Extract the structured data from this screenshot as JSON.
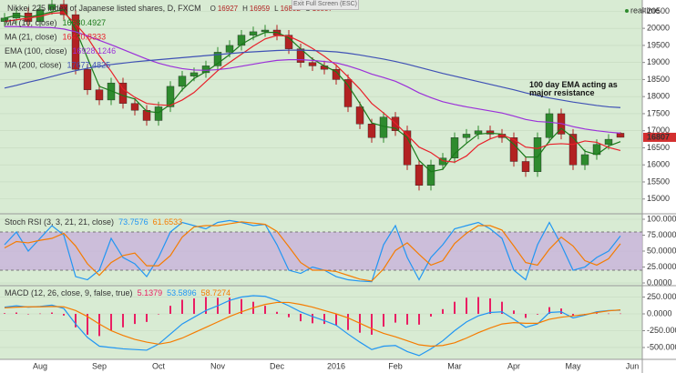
{
  "chart_data": [
    {
      "type": "candlestick",
      "title": "Nikkei 225 index of Japanese listed shares, D, FXCM",
      "ohlc_labels": [
        "O",
        "H",
        "L",
        "C"
      ],
      "exit_label": "Exit Full Screen (ESC)",
      "status": "realtime",
      "annotation": "100 day EMA acting as major resistance",
      "up_color": "#2e8b2e",
      "down_color": "#b22222",
      "categories": [
        null,
        null,
        null,
        "Aug",
        null,
        null,
        null,
        null,
        "Sep",
        null,
        null,
        null,
        null,
        "Oct",
        null,
        null,
        null,
        null,
        "Nov",
        null,
        null,
        null,
        null,
        "Dec",
        null,
        null,
        null,
        null,
        "2016",
        null,
        null,
        null,
        null,
        "Feb",
        null,
        null,
        null,
        null,
        "Mar",
        null,
        null,
        null,
        null,
        "Apr",
        null,
        null,
        null,
        null,
        "May",
        null,
        null,
        null,
        null,
        "Jun"
      ],
      "open": [
        20200,
        20300,
        20450,
        20200,
        20550,
        20700,
        20400,
        18800,
        18200,
        17900,
        18400,
        17800,
        17600,
        17300,
        17700,
        18300,
        18600,
        18700,
        18900,
        19300,
        19500,
        19800,
        19900,
        19950,
        19800,
        19400,
        19000,
        18900,
        18800,
        18500,
        17700,
        17200,
        16800,
        17400,
        17000,
        16000,
        15400,
        16000,
        16200,
        16800,
        16900,
        17000,
        16900,
        16800,
        16100,
        15800,
        16800,
        17500,
        16900,
        16000,
        16300,
        16600,
        16927,
        null
      ],
      "high": [
        20450,
        20600,
        20600,
        20700,
        20850,
        20850,
        20550,
        18950,
        18350,
        18550,
        18550,
        17950,
        17750,
        17850,
        18450,
        18750,
        18850,
        19050,
        19450,
        19650,
        19950,
        20050,
        20100,
        20100,
        19950,
        19550,
        19150,
        19050,
        18950,
        18650,
        17850,
        17350,
        17550,
        17550,
        17150,
        16150,
        16150,
        16350,
        16950,
        17050,
        17150,
        17150,
        17050,
        16950,
        16250,
        16950,
        17650,
        17650,
        17050,
        16450,
        16750,
        16900,
        16959,
        null
      ],
      "low": [
        20050,
        20150,
        20050,
        20050,
        20400,
        20250,
        18650,
        18050,
        17750,
        17750,
        17650,
        17450,
        17150,
        17150,
        17550,
        18150,
        18450,
        18550,
        18750,
        19150,
        19350,
        19650,
        19750,
        19650,
        19250,
        18850,
        18750,
        18650,
        18350,
        17550,
        17050,
        16650,
        16650,
        16850,
        15850,
        15250,
        15250,
        15850,
        16050,
        16650,
        16750,
        16750,
        16650,
        15950,
        15650,
        15650,
        16650,
        16750,
        15850,
        15850,
        16150,
        16450,
        16802,
        null
      ],
      "close": [
        20300,
        20450,
        20200,
        20550,
        20700,
        20400,
        18800,
        18200,
        17900,
        18400,
        17800,
        17600,
        17300,
        17700,
        18300,
        18600,
        18700,
        18900,
        19300,
        19500,
        19800,
        19900,
        19950,
        19800,
        19400,
        19000,
        18900,
        18800,
        18500,
        17700,
        17200,
        16800,
        17400,
        17000,
        16000,
        15400,
        16000,
        16200,
        16800,
        16900,
        17000,
        16900,
        16800,
        16100,
        15800,
        16800,
        17500,
        16900,
        16000,
        16300,
        16600,
        16750,
        16807,
        null
      ],
      "series": [
        {
          "name": "MA (10, close)",
          "color": "#1b7a1b",
          "values": [
            20300,
            20380,
            20320,
            20400,
            20480,
            20550,
            19970,
            19130,
            18300,
            18170,
            18030,
            17930,
            17570,
            17530,
            17770,
            18200,
            18530,
            18730,
            18970,
            19230,
            19530,
            19730,
            19880,
            19880,
            19720,
            19400,
            19100,
            18900,
            18730,
            18330,
            17800,
            17230,
            17130,
            17070,
            16800,
            16130,
            15800,
            15870,
            16330,
            16630,
            16900,
            16930,
            16900,
            16600,
            16230,
            16230,
            16700,
            17070,
            16800,
            16400,
            16300,
            16550,
            16680.4927,
            null
          ]
        },
        {
          "name": "MA (21, close)",
          "color": "#e8202a",
          "values": [
            20200,
            20250,
            20300,
            20350,
            20440,
            20460,
            20130,
            19730,
            19200,
            18740,
            18220,
            17980,
            17800,
            17760,
            17740,
            17900,
            18120,
            18440,
            18760,
            19000,
            19240,
            19480,
            19690,
            19790,
            19770,
            19610,
            19410,
            19180,
            18920,
            18580,
            18220,
            17800,
            17520,
            17220,
            16880,
            16520,
            16360,
            16120,
            16080,
            16260,
            16580,
            16760,
            16880,
            16740,
            16520,
            16480,
            16600,
            16620,
            16600,
            16700,
            16660,
            16510,
            16420.8333,
            null
          ]
        },
        {
          "name": "EMA (100, close)",
          "color": "#9b30d9",
          "values": [
            20050,
            20050,
            20040,
            20030,
            20020,
            19980,
            19900,
            19780,
            19650,
            19520,
            19380,
            19240,
            19100,
            18980,
            18890,
            18820,
            18780,
            18770,
            18790,
            18830,
            18890,
            18950,
            19010,
            19060,
            19080,
            19080,
            19060,
            19030,
            18990,
            18900,
            18790,
            18660,
            18560,
            18450,
            18290,
            18110,
            17970,
            17850,
            17770,
            17700,
            17640,
            17580,
            17520,
            17430,
            17330,
            17270,
            17250,
            17210,
            17120,
            17050,
            17000,
            16960,
            16928.1246,
            null
          ]
        },
        {
          "name": "MA (200, close)",
          "color": "#3f51b5",
          "values": [
            18250,
            18330,
            18420,
            18500,
            18590,
            18680,
            18760,
            18830,
            18890,
            18940,
            18980,
            19020,
            19050,
            19080,
            19110,
            19140,
            19170,
            19200,
            19230,
            19260,
            19290,
            19310,
            19330,
            19350,
            19360,
            19360,
            19350,
            19330,
            19310,
            19270,
            19220,
            19160,
            19100,
            19030,
            18950,
            18860,
            18770,
            18680,
            18600,
            18520,
            18440,
            18360,
            18280,
            18200,
            18110,
            18030,
            17960,
            17900,
            17840,
            17790,
            17740,
            17700,
            17677.4825,
            null
          ]
        }
      ],
      "ylim": [
        14620,
        20750
      ],
      "yticks": [
        15000,
        15500,
        16000,
        16500,
        17000,
        17500,
        18000,
        18500,
        19000,
        19500,
        20000,
        20500
      ]
    },
    {
      "type": "line",
      "title": "Stoch RSI (3, 3, 21, 21, close)",
      "band": [
        20,
        80
      ],
      "band_color": "#c9b3dc",
      "series": [
        {
          "color": "#2196f3",
          "values": [
            60,
            80,
            50,
            70,
            90,
            75,
            10,
            5,
            20,
            70,
            40,
            30,
            10,
            40,
            80,
            95,
            90,
            85,
            95,
            98,
            95,
            90,
            92,
            60,
            20,
            15,
            25,
            20,
            10,
            5,
            3,
            2,
            60,
            90,
            40,
            5,
            40,
            60,
            85,
            90,
            95,
            85,
            70,
            20,
            5,
            60,
            95,
            60,
            20,
            25,
            40,
            50,
            73.7576,
            null
          ]
        },
        {
          "color": "#f57c00",
          "values": [
            55,
            65,
            63,
            67,
            70,
            78,
            58,
            30,
            12,
            32,
            43,
            47,
            27,
            27,
            43,
            72,
            88,
            90,
            90,
            93,
            96,
            94,
            92,
            81,
            57,
            32,
            20,
            20,
            18,
            12,
            6,
            3,
            22,
            51,
            63,
            45,
            28,
            35,
            62,
            78,
            90,
            90,
            83,
            58,
            32,
            28,
            53,
            72,
            58,
            35,
            28,
            38,
            61.6533,
            null
          ]
        }
      ],
      "ylim": [
        -1.4,
        104.3
      ],
      "yticks": [
        {
          "value": 0,
          "label": "0.0000"
        },
        {
          "value": 25,
          "label": "25.0000"
        },
        {
          "value": 50,
          "label": "50.0000"
        },
        {
          "value": 75,
          "label": "75.0000"
        },
        {
          "value": 100,
          "label": "100.0000"
        }
      ]
    },
    {
      "type": "line",
      "title": "MACD (12, 26, close, 9, false, true)",
      "series": [
        {
          "type": "bar",
          "color": "#e91e63",
          "values": [
            10,
            20,
            -5,
            5,
            20,
            -25,
            -200,
            -310,
            -330,
            -250,
            -200,
            -150,
            -120,
            0,
            120,
            210,
            230,
            250,
            240,
            240,
            220,
            180,
            120,
            30,
            -50,
            -110,
            -140,
            -150,
            -170,
            -240,
            -280,
            -310,
            -190,
            -130,
            -160,
            -160,
            -40,
            70,
            180,
            240,
            250,
            230,
            180,
            50,
            -60,
            -10,
            100,
            80,
            -30,
            -10,
            10,
            5,
            5.1379,
            null
          ]
        },
        {
          "color": "#2196f3",
          "values": [
            100,
            120,
            100,
            110,
            130,
            80,
            -150,
            -350,
            -480,
            -500,
            -520,
            -530,
            -540,
            -450,
            -300,
            -150,
            -50,
            50,
            120,
            200,
            250,
            270,
            260,
            200,
            120,
            30,
            -40,
            -100,
            -170,
            -300,
            -420,
            -530,
            -480,
            -470,
            -560,
            -620,
            -520,
            -400,
            -250,
            -120,
            -30,
            20,
            30,
            -80,
            -200,
            -150,
            20,
            30,
            -60,
            -20,
            30,
            50,
            53.5896,
            null
          ]
        },
        {
          "color": "#f57c00",
          "values": [
            90,
            100,
            105,
            105,
            110,
            105,
            50,
            -40,
            -150,
            -250,
            -320,
            -380,
            -420,
            -450,
            -420,
            -360,
            -280,
            -200,
            -120,
            -40,
            30,
            90,
            140,
            170,
            170,
            140,
            100,
            50,
            0,
            -60,
            -140,
            -220,
            -290,
            -340,
            -400,
            -460,
            -480,
            -470,
            -430,
            -360,
            -280,
            -210,
            -150,
            -130,
            -140,
            -140,
            -80,
            -50,
            -30,
            -10,
            20,
            45,
            58.7274,
            null
          ]
        }
      ],
      "ylim": [
        -676,
        392
      ],
      "yticks": [
        {
          "value": -500,
          "label": "-500.0000"
        },
        {
          "value": -250,
          "label": "-250.0000"
        },
        {
          "value": 0,
          "label": "0.0000"
        },
        {
          "value": 250,
          "label": "250.0000"
        }
      ]
    }
  ]
}
